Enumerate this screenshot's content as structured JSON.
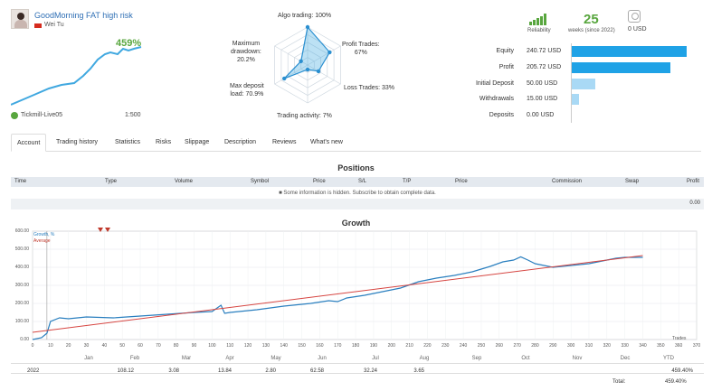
{
  "header": {
    "signal_title": "GoodMorning FAT high risk",
    "author": "Wei Tu",
    "gain": "459%",
    "broker": "Tickmill-Live05",
    "leverage": "1:500"
  },
  "radar": {
    "labels": {
      "algo": "Algo trading: 100%",
      "profit_trades": "Profit Trades:\n67%",
      "loss_trades": "Loss Trades: 33%",
      "trading_activity": "Trading activity: 7%",
      "max_deposit_load": "Max deposit\nload: 70.9%",
      "max_drawdown": "Maximum\ndrawdown:\n20.2%"
    },
    "values": {
      "algo": 1.0,
      "profit_trades": 0.67,
      "loss_trades": 0.33,
      "trading_activity": 0.07,
      "max_deposit_load": 0.709,
      "max_drawdown": 0.202
    }
  },
  "stats": {
    "reliability_label": "Reliability",
    "weeks_value": "25",
    "weeks_label": "weeks (since 2022)",
    "subscribers": "0 USD",
    "rows": [
      {
        "label": "Equity",
        "value": "240.72 USD",
        "amount": 240.72,
        "color": "#1fa2e6"
      },
      {
        "label": "Profit",
        "value": "205.72 USD",
        "amount": 205.72,
        "color": "#1fa2e6"
      },
      {
        "label": "Initial Deposit",
        "value": "50.00 USD",
        "amount": 50.0,
        "color": "#a9d9f5"
      },
      {
        "label": "Withdrawals",
        "value": "15.00 USD",
        "amount": 15.0,
        "color": "#a9d9f5"
      },
      {
        "label": "Deposits",
        "value": "0.00 USD",
        "amount": 0.0,
        "color": "#a9d9f5"
      }
    ]
  },
  "tabs": [
    {
      "label": "Account",
      "active": true
    },
    {
      "label": "Trading history"
    },
    {
      "label": "Statistics"
    },
    {
      "label": "Risks"
    },
    {
      "label": "Slippage"
    },
    {
      "label": "Description"
    },
    {
      "label": "Reviews"
    },
    {
      "label": "What's new"
    }
  ],
  "positions": {
    "title": "Positions",
    "columns": [
      "Time",
      "Type",
      "Volume",
      "Symbol",
      "Price",
      "S/L",
      "T/P",
      "Price",
      "Commission",
      "Swap",
      "Profit"
    ],
    "info": "Some information is hidden. Subscribe to obtain complete data.",
    "total": "0.00"
  },
  "growth": {
    "title": "Growth",
    "legend_growth": "Growth, %",
    "legend_average": "Average",
    "x_axis_label": "Trades",
    "colors": {
      "growth": "#2a7fbf",
      "average": "#d64541"
    }
  },
  "chart_data": {
    "type": "line",
    "title": "Growth",
    "xlabel": "Trades",
    "ylabel": "",
    "xlim": [
      0,
      370
    ],
    "ylim": [
      0,
      600
    ],
    "x_ticks": [
      0,
      10,
      20,
      30,
      40,
      50,
      60,
      70,
      80,
      90,
      100,
      110,
      120,
      130,
      140,
      150,
      160,
      170,
      180,
      190,
      200,
      210,
      220,
      230,
      240,
      250,
      260,
      270,
      280,
      290,
      300,
      310,
      320,
      330,
      340,
      350,
      360,
      370
    ],
    "y_ticks": [
      "0.00",
      "100.00",
      "200.00",
      "300.00",
      "400.00",
      "500.00",
      "600.00"
    ],
    "series": [
      {
        "name": "Growth, %",
        "x": [
          0,
          5,
          8,
          10,
          15,
          20,
          30,
          45,
          60,
          75,
          90,
          100,
          105,
          107,
          110,
          125,
          140,
          155,
          165,
          170,
          175,
          185,
          195,
          205,
          215,
          225,
          235,
          245,
          255,
          262,
          268,
          272,
          276,
          280,
          290,
          300,
          310,
          320,
          325,
          330,
          340
        ],
        "y": [
          0,
          10,
          35,
          100,
          120,
          115,
          125,
          120,
          130,
          140,
          150,
          155,
          190,
          145,
          150,
          165,
          185,
          200,
          215,
          210,
          230,
          245,
          265,
          285,
          320,
          340,
          355,
          375,
          405,
          430,
          440,
          458,
          440,
          420,
          400,
          410,
          420,
          440,
          450,
          455,
          455
        ]
      },
      {
        "name": "Average",
        "x": [
          0,
          340
        ],
        "y": [
          40,
          465
        ]
      }
    ]
  },
  "monthly": {
    "months": [
      "Jan",
      "Feb",
      "Mar",
      "Apr",
      "May",
      "Jun",
      "Jul",
      "Aug",
      "Sep",
      "Oct",
      "Nov",
      "Dec",
      "YTD"
    ],
    "year": "2022",
    "values": [
      "",
      "108.12",
      "3.08",
      "13.84",
      "2.80",
      "62.58",
      "32.24",
      "3.65",
      "",
      "",
      "",
      "",
      "459.40%"
    ],
    "total_label": "Total:",
    "total_value": "459.40%"
  }
}
